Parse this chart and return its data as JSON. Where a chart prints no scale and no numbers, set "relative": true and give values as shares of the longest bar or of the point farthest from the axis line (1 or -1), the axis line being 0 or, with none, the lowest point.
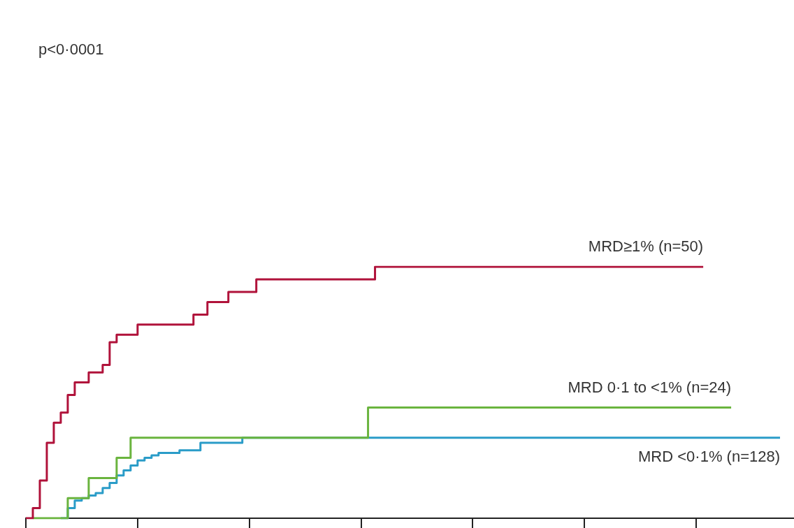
{
  "chart_data": {
    "type": "step",
    "relative": true,
    "categories": [
      null,
      null,
      null,
      null,
      null,
      null,
      null,
      null,
      null,
      null,
      null,
      null,
      null,
      null,
      null,
      null,
      null,
      null,
      null,
      null,
      null,
      null,
      null,
      null,
      null,
      null,
      null,
      null,
      null,
      null,
      null,
      null,
      null,
      null,
      null,
      null,
      null,
      null,
      null,
      null,
      null,
      null,
      null,
      null,
      null,
      null,
      null,
      null,
      null,
      null,
      null,
      null,
      null,
      null,
      null,
      null,
      null,
      null,
      null,
      null,
      null,
      null,
      null,
      null,
      null,
      null,
      null,
      null,
      null,
      null,
      null,
      null,
      null,
      null,
      null,
      null,
      null,
      null,
      null,
      null,
      null,
      null,
      null,
      null,
      null,
      null,
      null,
      null,
      null,
      null,
      null,
      null,
      null,
      null,
      null,
      null,
      null,
      null,
      null,
      null,
      null,
      null,
      null,
      null,
      null,
      null,
      null,
      null,
      null,
      null,
      null
    ],
    "series": [
      {
        "name": "MRD≥1% (n=50)",
        "color": "#b0123a",
        "values": [
          0,
          0.04,
          0.15,
          0.3,
          0.38,
          0.42,
          0.49,
          0.54,
          0.54,
          0.58,
          0.58,
          0.61,
          0.7,
          0.73,
          0.73,
          0.73,
          0.77,
          0.77,
          0.77,
          0.77,
          0.77,
          0.77,
          0.77,
          0.77,
          0.81,
          0.81,
          0.86,
          0.86,
          0.86,
          0.9,
          0.9,
          0.9,
          0.9,
          0.95,
          0.95,
          0.95,
          0.95,
          0.95,
          0.95,
          0.95,
          0.95,
          0.95,
          0.95,
          0.95,
          0.95,
          0.95,
          0.95,
          0.95,
          0.95,
          0.95,
          1,
          1,
          1,
          1,
          1,
          1,
          1,
          1,
          1,
          1,
          1,
          1,
          1,
          1,
          1,
          1,
          1,
          1,
          1,
          1,
          1,
          1,
          1,
          1,
          1,
          1,
          1,
          1,
          1,
          1,
          1,
          1,
          1,
          1,
          1,
          1,
          1,
          1,
          1,
          1,
          1,
          1,
          1,
          1,
          1,
          1,
          1,
          1,
          null,
          null,
          null,
          null,
          null,
          null,
          null,
          null,
          null,
          null,
          null,
          null,
          null
        ]
      },
      {
        "name": "MRD 0·1 to <1% (n=24)",
        "color": "#6ab43e",
        "values": [
          null,
          0,
          0,
          0,
          0,
          0,
          0.08,
          0.08,
          0.08,
          0.16,
          0.16,
          0.16,
          0.16,
          0.24,
          0.24,
          0.32,
          0.32,
          0.32,
          0.32,
          0.32,
          0.32,
          0.32,
          0.32,
          0.32,
          0.32,
          0.32,
          0.32,
          0.32,
          0.32,
          0.32,
          0.32,
          0.32,
          0.32,
          0.32,
          0.32,
          0.32,
          0.32,
          0.32,
          0.32,
          0.32,
          0.32,
          0.32,
          0.32,
          0.32,
          0.32,
          0.32,
          0.32,
          0.32,
          0.32,
          0.44,
          0.44,
          0.44,
          0.44,
          0.44,
          0.44,
          0.44,
          0.44,
          0.44,
          0.44,
          0.44,
          0.44,
          0.44,
          0.44,
          0.44,
          0.44,
          0.44,
          0.44,
          0.44,
          0.44,
          0.44,
          0.44,
          0.44,
          0.44,
          0.44,
          0.44,
          0.44,
          0.44,
          0.44,
          0.44,
          0.44,
          0.44,
          0.44,
          0.44,
          0.44,
          0.44,
          0.44,
          0.44,
          0.44,
          0.44,
          0.44,
          0.44,
          0.44,
          0.44,
          0.44,
          0.44,
          0.44,
          0.44,
          0.44,
          0.44,
          0.44,
          0.44,
          0.44,
          null,
          null,
          null,
          null,
          null,
          null,
          null,
          null,
          null
        ]
      },
      {
        "name": "MRD <0·1% (n=128)",
        "color": "#2a9cc8",
        "values": [
          null,
          null,
          null,
          null,
          null,
          0,
          0.04,
          0.07,
          0.08,
          0.09,
          0.1,
          0.12,
          0.14,
          0.17,
          0.19,
          0.21,
          0.23,
          0.24,
          0.25,
          0.26,
          0.26,
          0.26,
          0.27,
          0.27,
          0.27,
          0.3,
          0.3,
          0.3,
          0.3,
          0.3,
          0.3,
          0.32,
          0.32,
          0.32,
          0.32,
          0.32,
          0.32,
          0.32,
          0.32,
          0.32,
          0.32,
          0.32,
          0.32,
          0.32,
          0.32,
          0.32,
          0.32,
          0.32,
          0.32,
          0.32,
          0.32,
          0.32,
          0.32,
          0.32,
          0.32,
          0.32,
          0.32,
          0.32,
          0.32,
          0.32,
          0.32,
          0.32,
          0.32,
          0.32,
          0.32,
          0.32,
          0.32,
          0.32,
          0.32,
          0.32,
          0.32,
          0.32,
          0.32,
          0.32,
          0.32,
          0.32,
          0.32,
          0.32,
          0.32,
          0.32,
          0.32,
          0.32,
          0.32,
          0.32,
          0.32,
          0.32,
          0.32,
          0.32,
          0.32,
          0.32,
          0.32,
          0.32,
          0.32,
          0.32,
          0.32,
          0.32,
          0.32,
          0.32,
          0.32,
          0.32,
          0.32,
          0.32,
          0.32,
          0.32,
          0.32,
          0.32,
          0.32,
          0.32,
          0.32,
          null,
          null
        ]
      }
    ],
    "annotations": [
      "p<0·0001"
    ]
  }
}
